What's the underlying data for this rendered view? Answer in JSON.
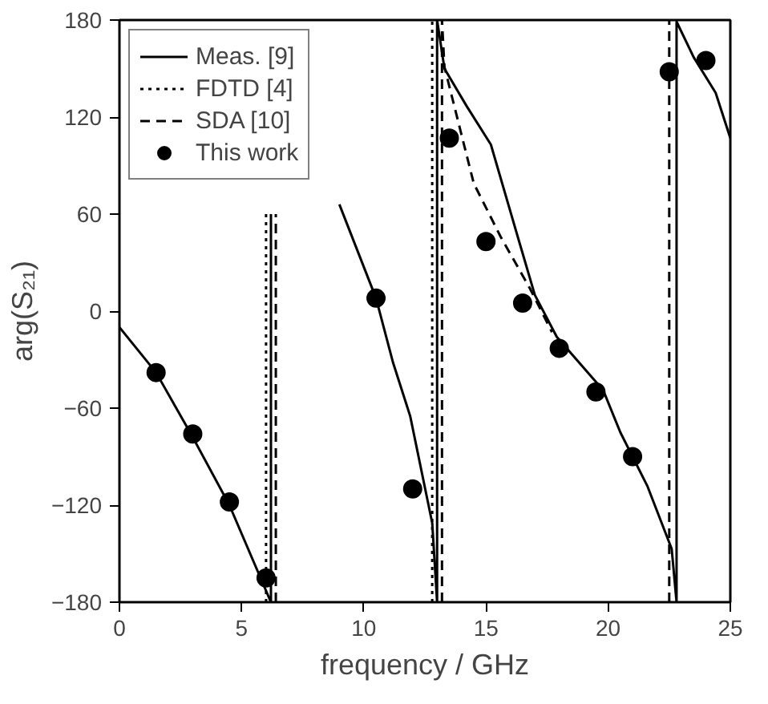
{
  "chart_data": {
    "type": "line",
    "xlabel": "frequency / GHz",
    "ylabel": "arg(S₂₁)",
    "xlim": [
      0,
      25
    ],
    "xticks": [
      0,
      5,
      10,
      15,
      20,
      25
    ],
    "ylim": [
      -180,
      180
    ],
    "yticks": [
      -180,
      -120,
      -60,
      0,
      60,
      120,
      180
    ],
    "grid": false,
    "legend": "top left",
    "series": [
      {
        "name": "Meas. [9]",
        "color": "#000000",
        "line_style": "solid",
        "x": [
          0,
          1.5,
          3,
          4.5,
          6.2,
          6.2,
          null,
          9.0,
          10.5,
          11.2,
          11.9,
          12.8,
          13.0,
          13.0,
          13.3,
          14.2,
          15.2,
          16.3,
          17.0,
          17.9,
          19.8,
          20.5,
          21.6,
          22.6,
          22.8,
          22.8,
          23.5,
          24.4,
          25
        ],
        "values": [
          -10,
          -38,
          -78,
          -120,
          -180,
          60,
          null,
          66,
          8,
          -32,
          -65,
          -131,
          -180,
          180,
          150,
          127,
          103,
          46,
          10,
          -16,
          -49,
          -75,
          -108,
          -147,
          -180,
          179,
          157,
          135,
          107
        ]
      },
      {
        "name": "FDTD [4]",
        "color": "#000000",
        "line_style": "dotted",
        "x": [
          6.0,
          6.0,
          null,
          12.8,
          12.8
        ],
        "values": [
          -180,
          60,
          null,
          -180,
          180
        ]
      },
      {
        "name": "SDA [10]",
        "color": "#000000",
        "line_style": "dashed",
        "x": [
          6.4,
          6.4,
          null,
          13.2,
          13.2,
          13.3,
          14.5,
          15.6,
          16.8,
          17.7,
          null,
          22.5,
          22.5
        ],
        "values": [
          -180,
          60,
          null,
          -180,
          180,
          151,
          79,
          46,
          14,
          -13,
          null,
          -180,
          180
        ]
      },
      {
        "name": "This work",
        "type": "scatter",
        "marker": "circle",
        "color": "#000000",
        "x": [
          1.5,
          3,
          4.5,
          6,
          10.5,
          12,
          13.5,
          15,
          16.5,
          18,
          19.5,
          21,
          22.5,
          24
        ],
        "values": [
          -38,
          -76,
          -118,
          -165,
          8,
          -110,
          107,
          43,
          5,
          -23,
          -50,
          -90,
          148,
          155
        ]
      }
    ]
  }
}
